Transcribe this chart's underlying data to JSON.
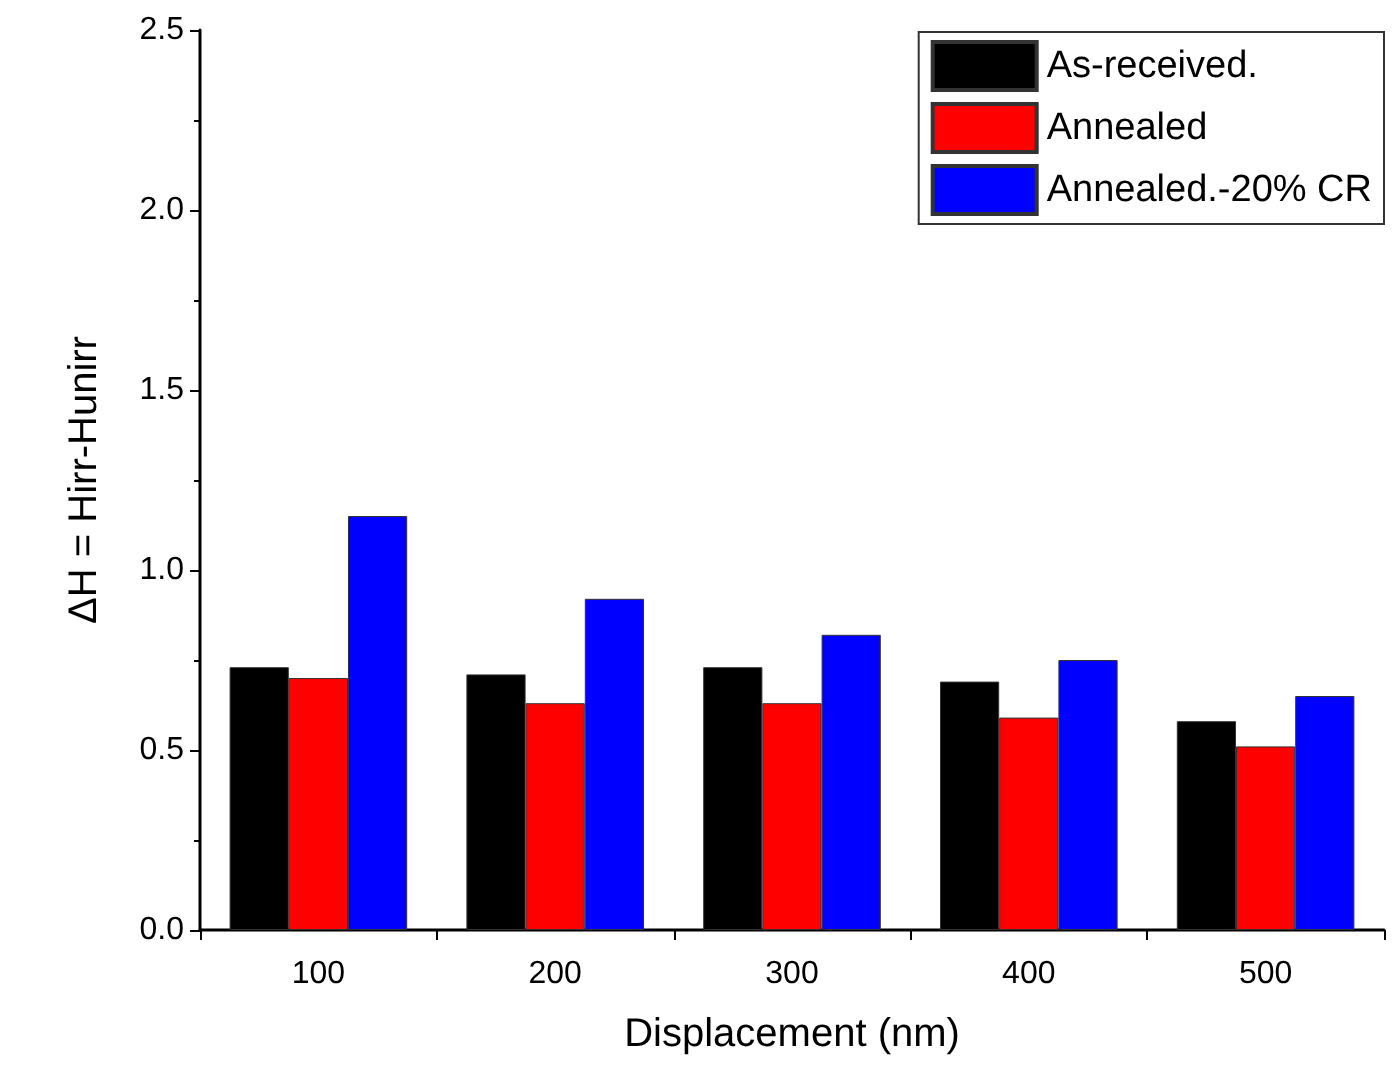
{
  "chart_data": {
    "type": "bar",
    "xlabel": "Displacement (nm)",
    "ylabel": "ΔH = Hirr-Hunirr",
    "categories": [
      "100",
      "200",
      "300",
      "400",
      "500"
    ],
    "series": [
      {
        "name": "As-received.",
        "color": "#000000",
        "values": [
          0.73,
          0.71,
          0.73,
          0.69,
          0.58
        ]
      },
      {
        "name": "Annealed",
        "color": "#ff0000",
        "values": [
          0.7,
          0.63,
          0.63,
          0.59,
          0.51
        ]
      },
      {
        "name": "Annealed.-20% CR",
        "color": "#0000ff",
        "values": [
          1.15,
          0.92,
          0.82,
          0.75,
          0.65
        ]
      }
    ],
    "ylim": [
      0,
      2.5
    ],
    "yticks": [
      {
        "value": 0,
        "label": "0.0"
      },
      {
        "value": 0.5,
        "label": "0.5"
      },
      {
        "value": 1,
        "label": "1.0"
      },
      {
        "value": 1.5,
        "label": "1.5"
      },
      {
        "value": 2,
        "label": "2.0"
      },
      {
        "value": 2.5,
        "label": "2.5"
      }
    ],
    "legend": "top right",
    "grid": false
  }
}
